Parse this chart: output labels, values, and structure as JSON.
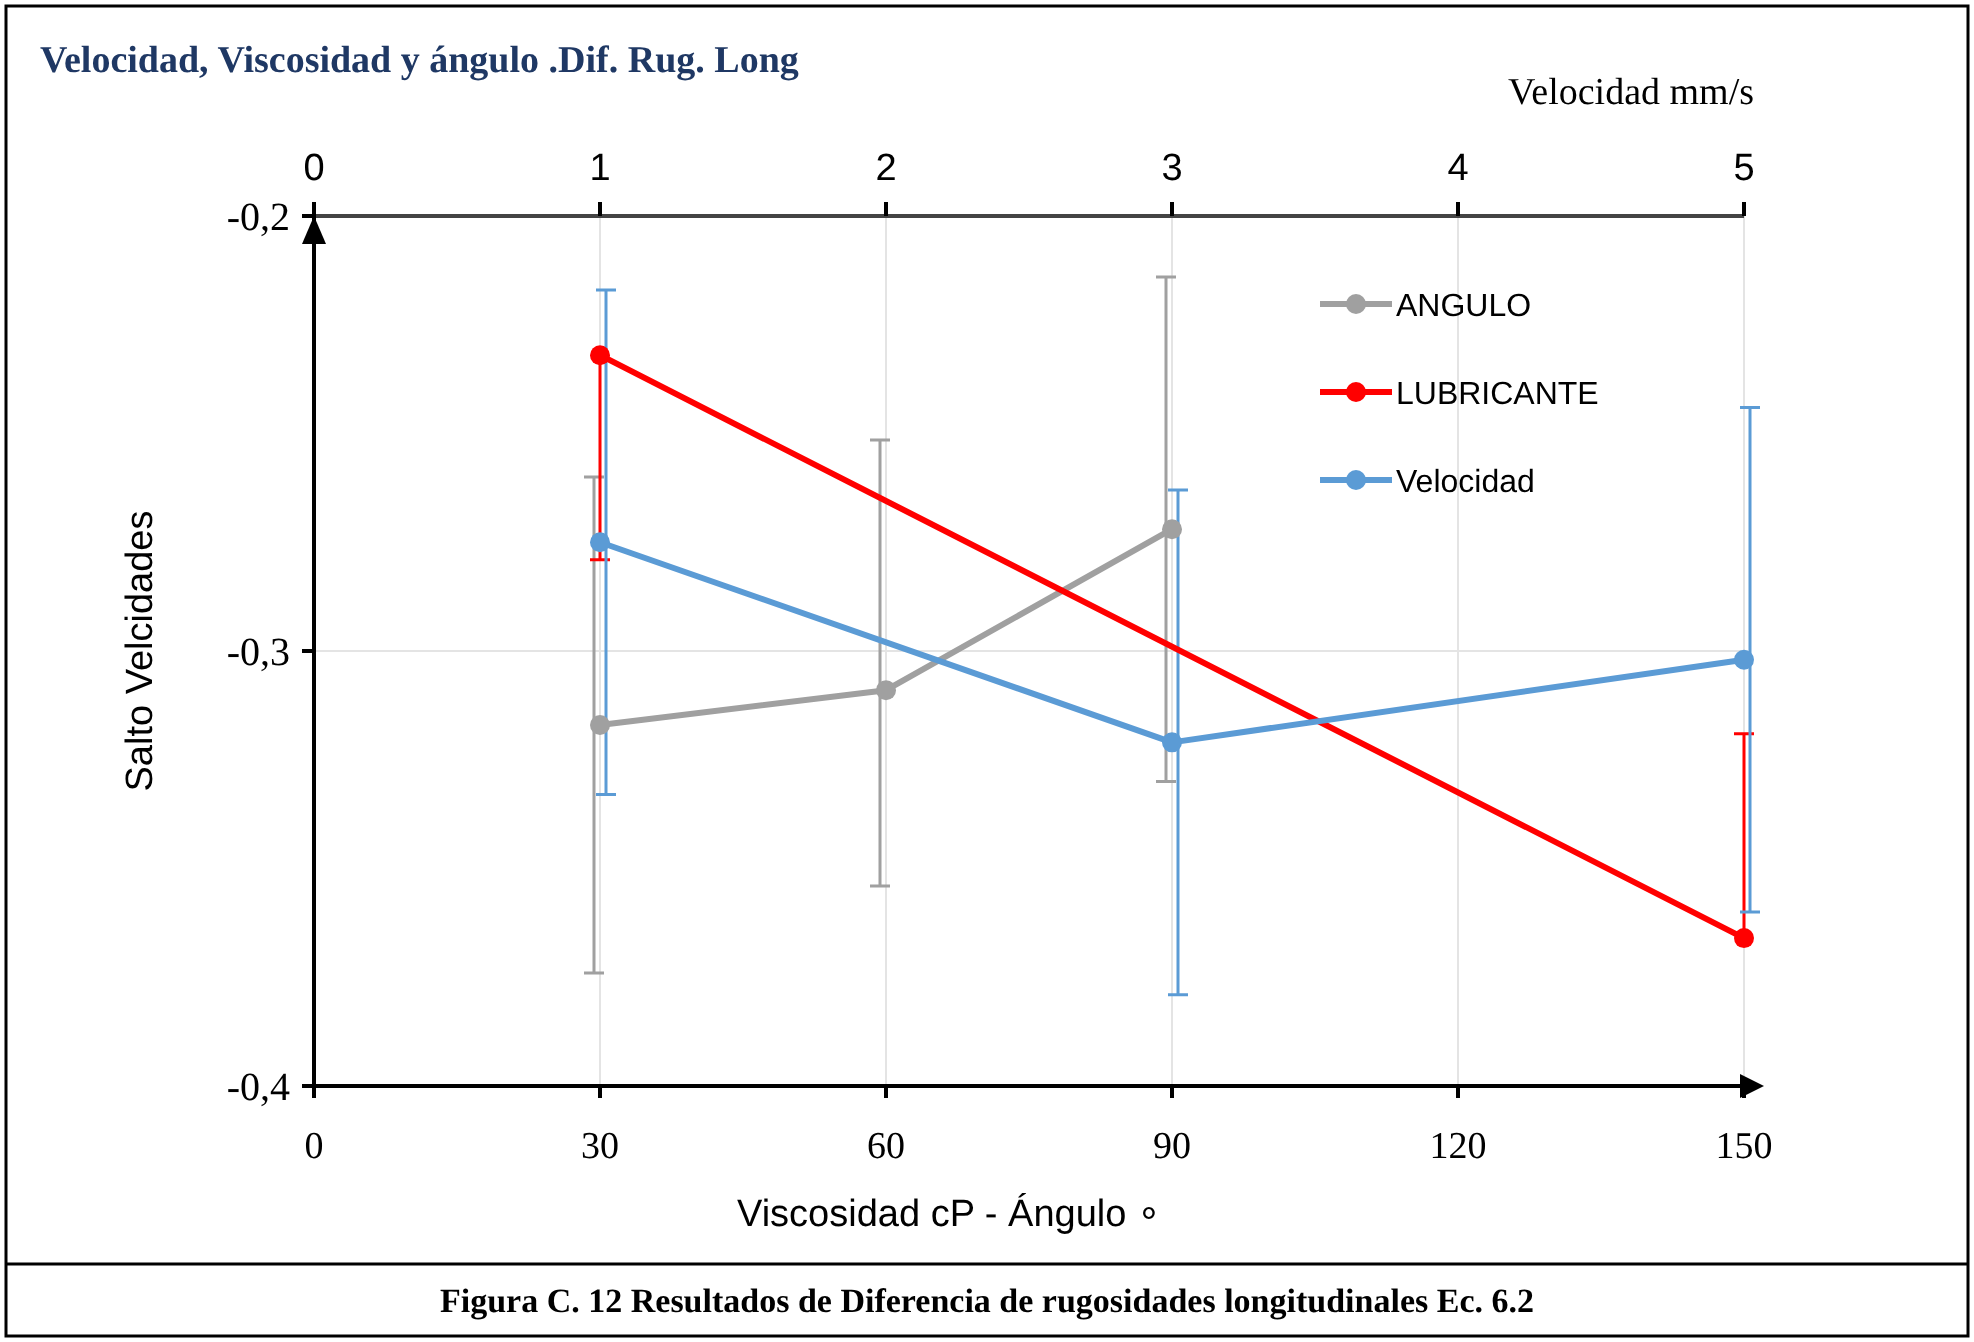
{
  "chart_data": {
    "type": "line",
    "title": "Velocidad, Viscosidad y ángulo .Dif. Rug. Long",
    "xlabel": "Viscosidad cP - Ángulo ∘",
    "x2label": "Velocidad mm/s",
    "ylabel": "Salto Velcidades",
    "xlim": [
      0,
      150
    ],
    "xticks": [
      0,
      30,
      60,
      90,
      120,
      150
    ],
    "x2lim": [
      0,
      5
    ],
    "x2ticks": [
      0,
      1,
      2,
      3,
      4,
      5
    ],
    "ylim": [
      -0.4,
      -0.2
    ],
    "yticks": [
      {
        "value": -0.4,
        "label": "-0,4"
      },
      {
        "value": -0.3,
        "label": "-0,3"
      },
      {
        "value": -0.2,
        "label": "-0,2"
      }
    ],
    "grid": true,
    "legend": "top right",
    "marker": "circle",
    "line_style": "solid",
    "series": [
      {
        "name": "ANGULO",
        "color": "#a0a0a0",
        "x": [
          30,
          60,
          90
        ],
        "values": [
          -0.317,
          -0.309,
          -0.272
        ],
        "errors": [
          0.057,
          [
            -0.354,
            -0.2515
          ],
          0.058
        ]
      },
      {
        "name": "LUBRICANTE",
        "color": "#ff0000",
        "x": [
          30,
          150
        ],
        "values": [
          -0.232,
          -0.366
        ],
        "errors": [
          [
            -0.279,
            -0.232
          ],
          [
            -0.366,
            -0.319
          ]
        ]
      },
      {
        "name": "Velocidad",
        "color": "#5b9bd5",
        "axis": "x2",
        "x": [
          1,
          3,
          5
        ],
        "values": [
          -0.275,
          -0.321,
          -0.302
        ],
        "errors": [
          0.058,
          0.058,
          0.058
        ]
      }
    ],
    "annotations": [
      "Figura C. 12  Resultados de Diferencia de rugosidades longitudinales Ec. 6.2"
    ]
  }
}
